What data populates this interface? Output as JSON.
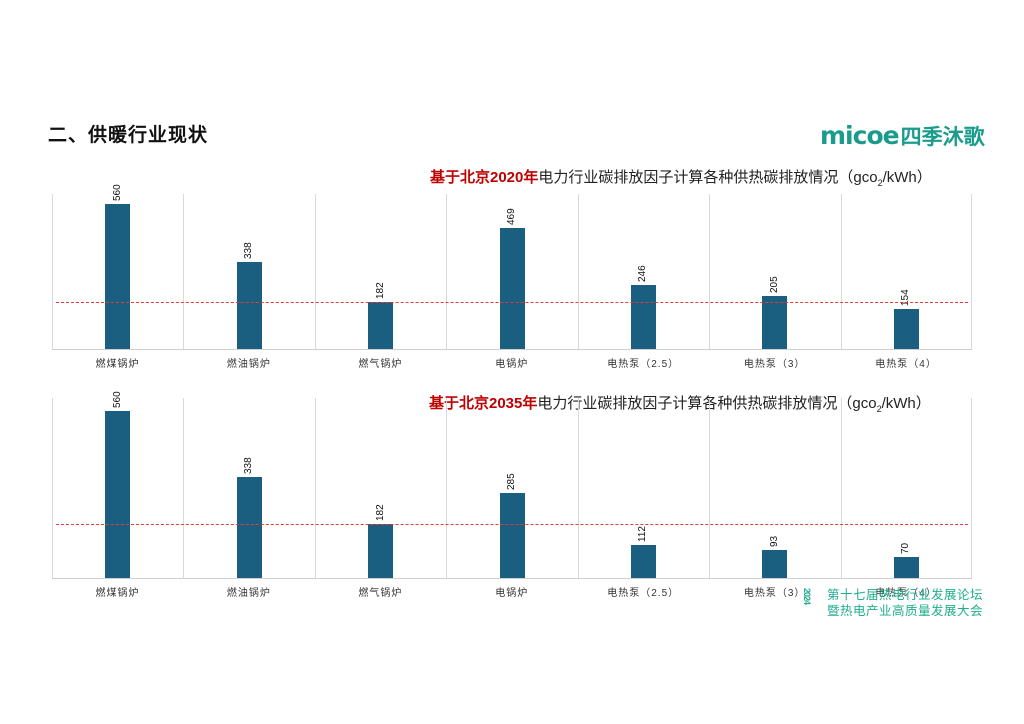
{
  "page": {
    "title": "二、供暖行业现状",
    "logo_latin": "micoe",
    "logo_cn": "四季沐歌",
    "footer": {
      "year_mark": "2024",
      "line1": "第十七届热电行业发展论坛",
      "line2": "暨热电产业高质量发展大会"
    }
  },
  "charts": [
    {
      "title_highlight": "基于北京2020年",
      "title_rest": "电力行业碳排放因子计算各种供热碳排放情况（gco",
      "title_sub": "2",
      "title_tail": "/kWh）",
      "categories": [
        "燃煤锅炉",
        "燃油锅炉",
        "燃气锅炉",
        "电锅炉",
        "电热泵（2.5）",
        "电热泵（3）",
        "电热泵（4）"
      ],
      "values": [
        "560",
        "338",
        "182",
        "469",
        "246",
        "205",
        "154"
      ]
    },
    {
      "title_highlight": "基于北京2035年",
      "title_rest": "电力行业碳排放因子计算各种供热碳排放情况（gco",
      "title_sub": "2",
      "title_tail": "/kWh）",
      "categories": [
        "燃煤锅炉",
        "燃油锅炉",
        "燃气锅炉",
        "电锅炉",
        "电热泵（2.5）",
        "电热泵（3）",
        "电热泵（4）"
      ],
      "values": [
        "560",
        "338",
        "182",
        "285",
        "112",
        "93",
        "70"
      ]
    }
  ],
  "chart_data": [
    {
      "type": "bar",
      "title": "基于北京2020年电力行业碳排放因子计算各种供热碳排放情况（gco2/kWh）",
      "categories": [
        "燃煤锅炉",
        "燃油锅炉",
        "燃气锅炉",
        "电锅炉",
        "电热泵（2.5）",
        "电热泵（3）",
        "电热泵（4）"
      ],
      "values": [
        560,
        338,
        182,
        469,
        246,
        205,
        154
      ],
      "xlabel": "",
      "ylabel": "gco2/kWh",
      "reference_line": {
        "value": 182,
        "style": "dashed",
        "color": "#e23b3b"
      },
      "bar_color": "#1a5f80",
      "grid": "vertical category dividers",
      "legend": "none"
    },
    {
      "type": "bar",
      "title": "基于北京2035年电力行业碳排放因子计算各种供热碳排放情况（gco2/kWh）",
      "categories": [
        "燃煤锅炉",
        "燃油锅炉",
        "燃气锅炉",
        "电锅炉",
        "电热泵（2.5）",
        "电热泵（3）",
        "电热泵（4）"
      ],
      "values": [
        560,
        338,
        182,
        285,
        112,
        93,
        70
      ],
      "xlabel": "",
      "ylabel": "gco2/kWh",
      "reference_line": {
        "value": 182,
        "style": "dashed",
        "color": "#e23b3b"
      },
      "bar_color": "#1a5f80",
      "grid": "vertical category dividers",
      "legend": "none"
    }
  ]
}
